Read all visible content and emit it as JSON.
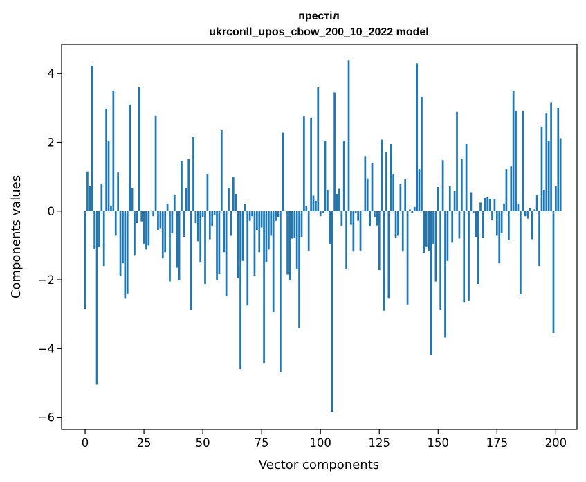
{
  "chart_data": {
    "type": "bar",
    "title_line1": "престіл",
    "title_line2": "ukrconll_upos_cbow_200_10_2022 model",
    "xlabel": "Vector components",
    "ylabel": "Components values",
    "xlim": [
      -10,
      209
    ],
    "ylim": [
      -6.35,
      4.85
    ],
    "xticks": [
      0,
      25,
      50,
      75,
      100,
      125,
      150,
      175,
      200
    ],
    "xtick_labels": [
      "0",
      "25",
      "50",
      "75",
      "100",
      "125",
      "150",
      "175",
      "200"
    ],
    "yticks": [
      -6,
      -4,
      -2,
      0,
      2,
      4
    ],
    "ytick_labels": [
      "−6",
      "−4",
      "−2",
      "0",
      "2",
      "4"
    ],
    "bar_color": "#1f77b4",
    "grid": false,
    "values": [
      -2.85,
      1.15,
      0.72,
      4.22,
      -1.1,
      -5.05,
      -1.05,
      0.8,
      -1.6,
      2.98,
      2.05,
      0.15,
      3.5,
      -0.72,
      1.12,
      -1.9,
      -1.52,
      -2.55,
      -2.4,
      3.1,
      0.68,
      -1.28,
      -0.35,
      3.6,
      -0.3,
      -0.95,
      -1.12,
      -1.0,
      0.02,
      -0.15,
      2.78,
      -0.55,
      -0.5,
      -1.38,
      -1.2,
      0.22,
      -2.05,
      -0.65,
      0.48,
      -1.65,
      -2.02,
      1.45,
      -0.75,
      0.68,
      1.52,
      -2.88,
      2.15,
      -0.35,
      -0.88,
      -1.48,
      -0.18,
      -2.12,
      1.08,
      -0.82,
      -0.45,
      -0.12,
      -2.02,
      -1.82,
      2.35,
      -1.2,
      -2.48,
      0.68,
      -0.72,
      0.98,
      0.5,
      -1.95,
      -4.6,
      -1.45,
      0.2,
      -2.75,
      -0.28,
      -0.15,
      -1.88,
      -0.55,
      -1.2,
      -0.48,
      -4.42,
      -1.5,
      -1.12,
      -0.72,
      -2.95,
      -0.28,
      -0.18,
      -4.68,
      2.28,
      0.02,
      -1.85,
      -2.02,
      -0.8,
      -0.78,
      -1.7,
      -3.4,
      -0.75,
      2.75,
      0.15,
      -1.15,
      2.72,
      0.45,
      0.3,
      3.6,
      -0.15,
      -0.05,
      2.05,
      0.62,
      -0.95,
      -5.85,
      3.45,
      0.5,
      0.65,
      -0.45,
      2.05,
      -1.7,
      4.38,
      -0.4,
      -1.18,
      -0.05,
      -0.28,
      -1.15,
      0.02,
      1.6,
      0.95,
      -0.45,
      1.4,
      -0.18,
      -0.42,
      -1.72,
      2.08,
      -2.9,
      1.72,
      -2.55,
      1.95,
      1.08,
      -0.78,
      -0.72,
      0.78,
      -1.18,
      0.92,
      -2.72,
      0.05,
      -0.05,
      0.12,
      4.3,
      1.22,
      3.32,
      -1.22,
      -1.05,
      -1.15,
      -4.18,
      -0.95,
      -2.05,
      0.7,
      -2.88,
      1.48,
      -3.68,
      -1.45,
      0.72,
      -0.92,
      0.58,
      2.88,
      -0.8,
      1.52,
      -2.65,
      1.95,
      -2.6,
      0.55,
      -0.05,
      -0.75,
      -2.12,
      0.25,
      -0.78,
      0.38,
      0.4,
      0.35,
      -0.25,
      0.35,
      -0.72,
      -1.52,
      -0.65,
      0.22,
      1.22,
      -0.85,
      1.3,
      3.5,
      2.92,
      0.22,
      -2.42,
      2.92,
      -0.15,
      -0.22,
      0.08,
      -0.82,
      0.05,
      0.48,
      -1.6,
      2.45,
      0.6,
      2.85,
      2.05,
      3.15,
      -3.55,
      0.72,
      3.0,
      2.12
    ]
  }
}
